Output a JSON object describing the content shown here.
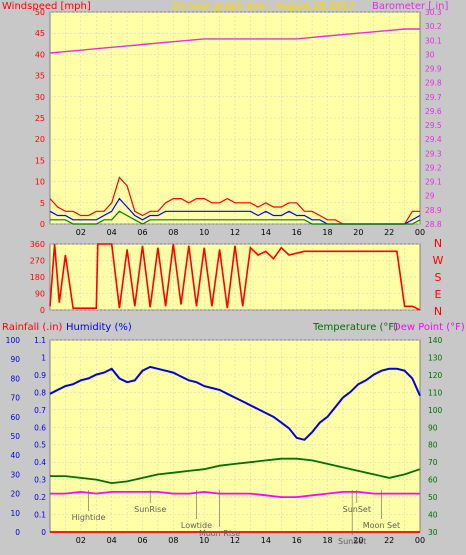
{
  "colors": {
    "background": "#c8c8c8",
    "plot_background": "#ffffa8",
    "grid": "#cccccc",
    "axis_frame": "#808080",
    "wind": "#ff0000",
    "gust": "#ff0000",
    "wind_avg": "#0000ff",
    "wind_low": "#008000",
    "barometer": "#e030e0",
    "direction": "#ff0000",
    "humidity": "#0000e0",
    "temperature": "#007000",
    "dewpoint": "#ff00ff",
    "title": "#ffd700",
    "annotation": "#606060"
  },
  "chart_data": [
    {
      "type": "line",
      "title": "24 hour graph due - August 25 2017",
      "left_label": "Windspeed [mph]",
      "right_label": "Barometer [.in]",
      "x_tick_labels": [
        "02",
        "04",
        "06",
        "08",
        "10",
        "12",
        "14",
        "16",
        "18",
        "20",
        "22",
        "00"
      ],
      "left_ticks": [
        "0",
        "5",
        "10",
        "15",
        "20",
        "25",
        "30",
        "35",
        "40",
        "45",
        "50"
      ],
      "left_ylim": [
        0,
        50
      ],
      "right_ticks": [
        "28.8",
        "28.9",
        "29",
        "29.1",
        "29.2",
        "29.3",
        "29.4",
        "29.5",
        "29.6",
        "29.7",
        "29.8",
        "29.9",
        "30",
        "30.1",
        "30.2",
        "30.3"
      ],
      "right_ylim": [
        28.8,
        30.3
      ],
      "grid": true,
      "series": [
        {
          "name": "gust",
          "axis": "left",
          "x": [
            0,
            0.5,
            1,
            1.5,
            2,
            2.5,
            3,
            3.5,
            4,
            4.5,
            5,
            5.5,
            6,
            6.5,
            7,
            7.5,
            8,
            8.5,
            9,
            9.5,
            10,
            10.5,
            11,
            11.5,
            12,
            12.5,
            13,
            13.5,
            14,
            14.5,
            15,
            15.5,
            16,
            16.5,
            17,
            17.5,
            18,
            18.5,
            19,
            19.5,
            20,
            20.5,
            21,
            21.5,
            22,
            22.5,
            23,
            23.5,
            24
          ],
          "values": [
            6,
            4,
            3,
            3,
            2,
            2,
            3,
            3,
            5,
            11,
            9,
            3,
            2,
            3,
            3,
            5,
            6,
            6,
            5,
            6,
            6,
            5,
            5,
            6,
            5,
            5,
            5,
            4,
            5,
            4,
            4,
            5,
            5,
            3,
            3,
            2,
            1,
            1,
            0,
            0,
            0,
            0,
            0,
            0,
            0,
            0,
            0,
            3,
            3
          ]
        },
        {
          "name": "wind",
          "axis": "left",
          "x": [
            0,
            0.5,
            1,
            1.5,
            2,
            2.5,
            3,
            3.5,
            4,
            4.5,
            5,
            5.5,
            6,
            6.5,
            7,
            7.5,
            8,
            8.5,
            9,
            9.5,
            10,
            10.5,
            11,
            11.5,
            12,
            12.5,
            13,
            13.5,
            14,
            14.5,
            15,
            15.5,
            16,
            16.5,
            17,
            17.5,
            18,
            18.5,
            19,
            19.5,
            20,
            20.5,
            21,
            21.5,
            22,
            22.5,
            23,
            23.5,
            24
          ],
          "values": [
            3,
            2,
            2,
            1,
            1,
            1,
            1,
            2,
            3,
            6,
            4,
            2,
            1,
            2,
            2,
            3,
            3,
            3,
            3,
            3,
            3,
            3,
            3,
            3,
            3,
            3,
            3,
            2,
            3,
            2,
            2,
            3,
            2,
            2,
            1,
            1,
            0,
            0,
            0,
            0,
            0,
            0,
            0,
            0,
            0,
            0,
            0,
            1,
            2
          ]
        },
        {
          "name": "wind-low",
          "axis": "left",
          "x": [
            0,
            0.5,
            1,
            1.5,
            2,
            2.5,
            3,
            3.5,
            4,
            4.5,
            5,
            5.5,
            6,
            6.5,
            7,
            7.5,
            8,
            8.5,
            9,
            9.5,
            10,
            10.5,
            11,
            11.5,
            12,
            12.5,
            13,
            13.5,
            14,
            14.5,
            15,
            15.5,
            16,
            16.5,
            17,
            17.5,
            18,
            18.5,
            19,
            19.5,
            20,
            20.5,
            21,
            21.5,
            22,
            22.5,
            23,
            23.5,
            24
          ],
          "values": [
            1,
            1,
            1,
            0,
            0,
            0,
            0,
            1,
            1,
            3,
            2,
            1,
            0,
            1,
            1,
            1,
            1,
            1,
            1,
            1,
            1,
            1,
            1,
            1,
            1,
            1,
            1,
            1,
            1,
            1,
            1,
            1,
            1,
            1,
            0,
            0,
            0,
            0,
            0,
            0,
            0,
            0,
            0,
            0,
            0,
            0,
            0,
            0,
            1
          ]
        },
        {
          "name": "barometer",
          "axis": "right",
          "x": [
            0,
            1,
            2,
            3,
            4,
            5,
            6,
            7,
            8,
            9,
            10,
            11,
            12,
            13,
            14,
            15,
            16,
            17,
            18,
            19,
            20,
            21,
            22,
            23,
            24
          ],
          "values": [
            30.01,
            30.02,
            30.03,
            30.04,
            30.05,
            30.06,
            30.07,
            30.08,
            30.09,
            30.1,
            30.11,
            30.11,
            30.11,
            30.11,
            30.11,
            30.11,
            30.11,
            30.12,
            30.13,
            30.14,
            30.15,
            30.16,
            30.17,
            30.18,
            30.18
          ]
        }
      ]
    },
    {
      "type": "line",
      "left_ticks": [
        "0",
        "90",
        "180",
        "270",
        "360"
      ],
      "ylim": [
        0,
        360
      ],
      "right_labels": [
        "N",
        "W",
        "S",
        "E",
        "N"
      ],
      "series": [
        {
          "name": "direction",
          "x": [
            0,
            0.3,
            0.6,
            1,
            1.5,
            2,
            2.5,
            3,
            3.1,
            3.2,
            3.5,
            4,
            4.5,
            5,
            5.5,
            6,
            6.5,
            7,
            7.5,
            8,
            8.5,
            9,
            9.5,
            10,
            10.5,
            11,
            11.5,
            12,
            12.5,
            13,
            13.5,
            14,
            14.5,
            15,
            15.5,
            16,
            16.5,
            17,
            17.5,
            18,
            19,
            20,
            21,
            22,
            22.5,
            23,
            23.5,
            24
          ],
          "values": [
            20,
            360,
            40,
            300,
            10,
            10,
            10,
            10,
            360,
            360,
            360,
            360,
            10,
            330,
            20,
            350,
            15,
            340,
            20,
            360,
            30,
            350,
            20,
            340,
            20,
            330,
            10,
            350,
            20,
            340,
            300,
            320,
            280,
            340,
            300,
            310,
            320,
            320,
            320,
            320,
            320,
            320,
            320,
            320,
            320,
            20,
            20,
            0
          ]
        }
      ]
    },
    {
      "type": "line",
      "left_label_1": "Rainfall (.in)",
      "left_label_2": "Humidity (%)",
      "right_label_1": "Temperature (°F)",
      "right_label_2": "Dew Point (°F)",
      "humidity_ticks": [
        "0",
        "10",
        "20",
        "30",
        "40",
        "50",
        "60",
        "70",
        "80",
        "90",
        "100"
      ],
      "humidity_ylim": [
        0,
        100
      ],
      "rain_ticks": [
        "0",
        "0.1",
        "0.2",
        "0.3",
        "0.4",
        "0.5",
        "0.6",
        "0.7",
        "0.8",
        "0.9",
        "1",
        "1.1"
      ],
      "rain_ylim": [
        0,
        1.1
      ],
      "temp_ticks": [
        "30",
        "40",
        "50",
        "60",
        "70",
        "80",
        "90",
        "100",
        "110",
        "120",
        "130",
        "140"
      ],
      "temp_ylim": [
        30,
        140
      ],
      "grid": true,
      "annotations": [
        {
          "label": "Hightide",
          "x": 2.5,
          "row": 1
        },
        {
          "label": "SunRise",
          "x": 6.5,
          "row": 0
        },
        {
          "label": "Lowtide",
          "x": 9.5,
          "row": 2
        },
        {
          "label": "Moon Rise",
          "x": 11.0,
          "row": 3
        },
        {
          "label": "SunSet",
          "x": 19.9,
          "row": 0
        },
        {
          "label": "SunSet",
          "x": 19.6,
          "row": 4
        },
        {
          "label": "Moon Set",
          "x": 21.5,
          "row": 2
        }
      ],
      "series": [
        {
          "name": "humidity",
          "axis": "humidity",
          "x": [
            0,
            0.5,
            1,
            1.5,
            2,
            2.5,
            3,
            3.5,
            4,
            4.5,
            5,
            5.5,
            6,
            6.5,
            7,
            7.5,
            8,
            8.5,
            9,
            9.5,
            10,
            10.5,
            11,
            11.5,
            12,
            12.5,
            13,
            13.5,
            14,
            14.5,
            15,
            15.5,
            16,
            16.5,
            17,
            17.5,
            18,
            18.5,
            19,
            19.5,
            20,
            20.5,
            21,
            21.5,
            22,
            22.5,
            23,
            23.5,
            24
          ],
          "values": [
            72,
            74,
            76,
            77,
            79,
            80,
            82,
            83,
            85,
            80,
            78,
            79,
            84,
            86,
            85,
            84,
            83,
            81,
            79,
            78,
            76,
            75,
            74,
            72,
            70,
            68,
            66,
            64,
            62,
            60,
            57,
            54,
            49,
            48,
            52,
            57,
            60,
            65,
            70,
            73,
            77,
            79,
            82,
            84,
            85,
            85,
            84,
            80,
            71
          ]
        },
        {
          "name": "temperature",
          "axis": "temp",
          "x": [
            0,
            1,
            2,
            3,
            4,
            5,
            6,
            7,
            8,
            9,
            10,
            11,
            12,
            13,
            14,
            15,
            16,
            17,
            18,
            19,
            20,
            21,
            22,
            23,
            24
          ],
          "values": [
            62,
            62,
            61,
            60,
            58,
            59,
            61,
            63,
            64,
            65,
            66,
            68,
            69,
            70,
            71,
            72,
            72,
            71,
            69,
            67,
            65,
            63,
            61,
            63,
            66
          ]
        },
        {
          "name": "dewpoint",
          "axis": "temp",
          "x": [
            0,
            1,
            2,
            3,
            4,
            5,
            6,
            7,
            8,
            9,
            10,
            11,
            12,
            13,
            14,
            15,
            16,
            17,
            18,
            19,
            20,
            21,
            22,
            23,
            24
          ],
          "values": [
            52,
            52,
            53,
            52,
            53,
            53,
            53,
            53,
            52,
            52,
            53,
            52,
            52,
            52,
            51,
            50,
            50,
            51,
            52,
            53,
            53,
            52,
            52,
            52,
            52
          ]
        },
        {
          "name": "rainfall",
          "axis": "rain",
          "x": [
            0,
            24
          ],
          "values": [
            0,
            0
          ]
        }
      ]
    }
  ]
}
